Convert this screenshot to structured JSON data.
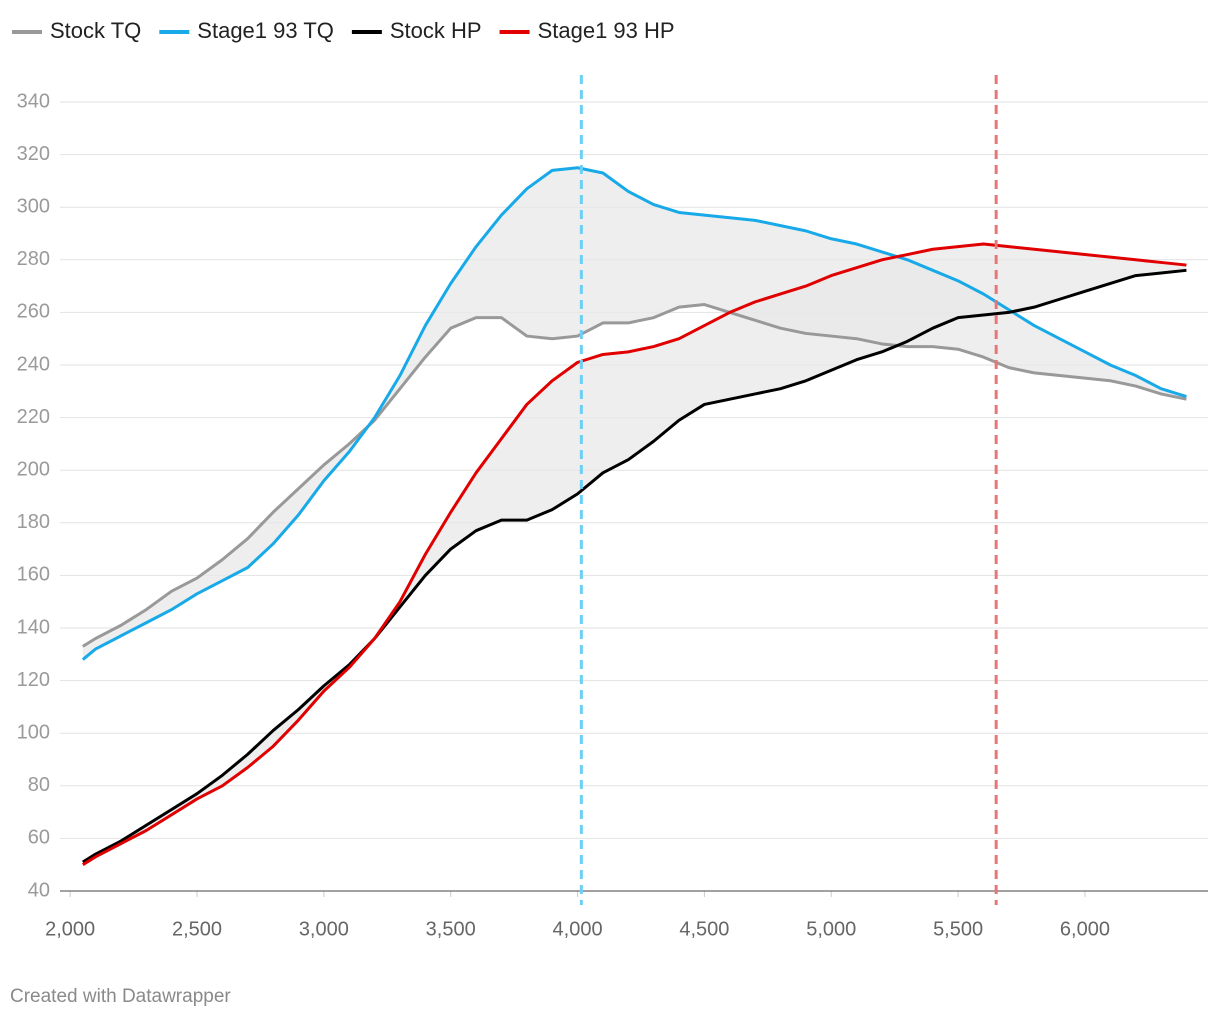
{
  "chart_data": {
    "type": "line",
    "x": [
      2050,
      2100,
      2200,
      2300,
      2400,
      2500,
      2600,
      2700,
      2800,
      2900,
      3000,
      3100,
      3200,
      3300,
      3400,
      3500,
      3600,
      3700,
      3800,
      3900,
      4000,
      4100,
      4200,
      4300,
      4400,
      4500,
      4600,
      4700,
      4800,
      4900,
      5000,
      5100,
      5200,
      5300,
      5400,
      5500,
      5600,
      5700,
      5800,
      5900,
      6000,
      6100,
      6200,
      6300,
      6400
    ],
    "series": [
      {
        "name": "Stock TQ",
        "color": "#999999",
        "values": [
          133,
          136,
          141,
          147,
          154,
          159,
          166,
          174,
          184,
          193,
          202,
          210,
          219,
          231,
          243,
          254,
          258,
          258,
          251,
          250,
          251,
          256,
          256,
          258,
          262,
          263,
          260,
          257,
          254,
          252,
          251,
          250,
          248,
          247,
          247,
          246,
          243,
          239,
          237,
          236,
          235,
          234,
          232,
          229,
          227
        ]
      },
      {
        "name": "Stage1 93 TQ",
        "color": "#18a9e8",
        "values": [
          128,
          132,
          137,
          142,
          147,
          153,
          158,
          163,
          172,
          183,
          196,
          207,
          220,
          236,
          255,
          271,
          285,
          297,
          307,
          314,
          315,
          313,
          306,
          301,
          298,
          297,
          296,
          295,
          293,
          291,
          288,
          286,
          283,
          280,
          276,
          272,
          267,
          261,
          255,
          250,
          245,
          240,
          236,
          231,
          228
        ]
      },
      {
        "name": "Stock HP",
        "color": "#000000",
        "values": [
          51,
          54,
          59,
          65,
          71,
          77,
          84,
          92,
          101,
          109,
          118,
          126,
          136,
          148,
          160,
          170,
          177,
          181,
          181,
          185,
          191,
          199,
          204,
          211,
          219,
          225,
          227,
          229,
          231,
          234,
          238,
          242,
          245,
          249,
          254,
          258,
          259,
          260,
          262,
          265,
          268,
          271,
          274,
          275,
          276
        ]
      },
      {
        "name": "Stage1 93 HP",
        "color": "#e00000",
        "values": [
          50,
          53,
          58,
          63,
          69,
          75,
          80,
          87,
          95,
          105,
          116,
          125,
          136,
          150,
          168,
          184,
          199,
          212,
          225,
          234,
          241,
          244,
          245,
          247,
          250,
          255,
          260,
          264,
          267,
          270,
          274,
          277,
          280,
          282,
          284,
          285,
          286,
          285,
          284,
          283,
          282,
          281,
          280,
          279,
          278
        ]
      }
    ],
    "area_fill_color": "#e8e8e8",
    "reference_lines": [
      {
        "value": 4015,
        "color": "#6dcff6"
      },
      {
        "value": 5650,
        "color": "#e87676"
      }
    ],
    "xlim": [
      1960,
      6485
    ],
    "ylim": [
      40,
      340
    ],
    "xticks": [
      {
        "value": 2000,
        "label": "2,000"
      },
      {
        "value": 2500,
        "label": "2,500"
      },
      {
        "value": 3000,
        "label": "3,000"
      },
      {
        "value": 3500,
        "label": "3,500"
      },
      {
        "value": 4000,
        "label": "4,000"
      },
      {
        "value": 4500,
        "label": "4,500"
      },
      {
        "value": 5000,
        "label": "5,000"
      },
      {
        "value": 5500,
        "label": "5,500"
      },
      {
        "value": 6000,
        "label": "6,000"
      }
    ],
    "yticks": [
      40,
      60,
      80,
      100,
      120,
      140,
      160,
      180,
      200,
      220,
      240,
      260,
      280,
      300,
      320,
      340
    ],
    "grid": true,
    "credit": "Created with Datawrapper"
  }
}
